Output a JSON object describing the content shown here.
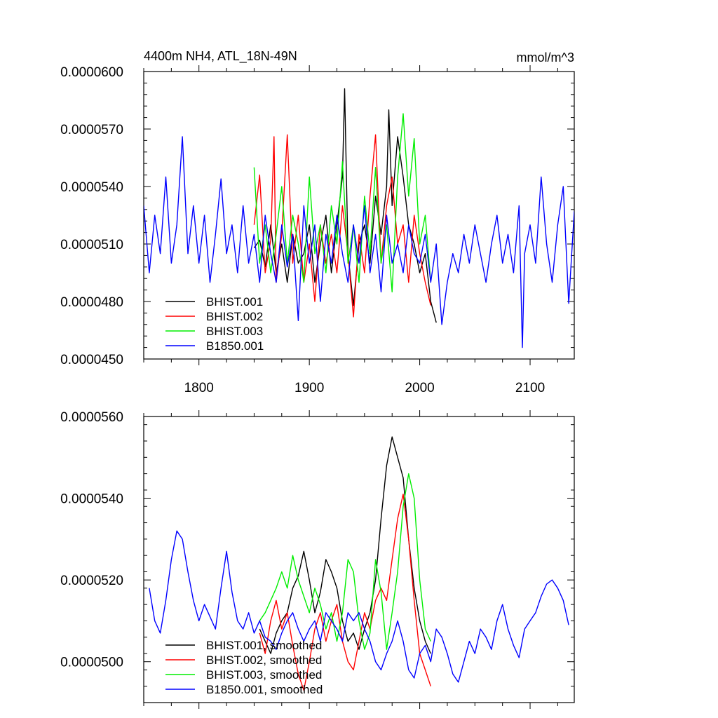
{
  "chart_data": [
    {
      "type": "line",
      "title": "4400m NH4, ATL_18N-49N",
      "units": "mmol/m^3",
      "xlim": [
        1750,
        2140
      ],
      "ylim": [
        4.5e-05,
        6e-05
      ],
      "xticks": [
        1800,
        1900,
        2000,
        2100
      ],
      "xtick_labels": [
        "1800",
        "1900",
        "2000",
        "2100"
      ],
      "yticks": [
        4.5e-05,
        4.8e-05,
        5.1e-05,
        5.4e-05,
        5.7e-05,
        6e-05
      ],
      "ytick_labels": [
        "0.0000450",
        "0.0000480",
        "0.0000510",
        "0.0000540",
        "0.0000570",
        "0.0000600"
      ],
      "legend_position": "bottom-left",
      "series": [
        {
          "name": "BHIST.001",
          "color": "#000000",
          "x": [
            1850,
            1855,
            1860,
            1865,
            1870,
            1875,
            1880,
            1885,
            1890,
            1895,
            1900,
            1905,
            1910,
            1915,
            1920,
            1925,
            1930,
            1932,
            1935,
            1940,
            1945,
            1950,
            1955,
            1960,
            1965,
            1970,
            1972,
            1975,
            1980,
            1985,
            1990,
            1995,
            2000,
            2005,
            2010,
            2015
          ],
          "y": [
            5.08e-05,
            5.12e-05,
            4.98e-05,
            5.2e-05,
            4.95e-05,
            5.1e-05,
            4.9e-05,
            5.15e-05,
            5e-05,
            5.05e-05,
            5.2e-05,
            4.9e-05,
            5.1e-05,
            5.25e-05,
            4.95e-05,
            5.2e-05,
            5.45e-05,
            5.91e-05,
            5.05e-05,
            4.78e-05,
            5.1e-05,
            5.2e-05,
            5e-05,
            5.35e-05,
            5.15e-05,
            5.4e-05,
            5.8e-05,
            5.3e-05,
            5.66e-05,
            5.45e-05,
            5.2e-05,
            5.1e-05,
            4.95e-05,
            5.05e-05,
            4.8e-05,
            4.69e-05
          ]
        },
        {
          "name": "BHIST.002",
          "color": "#ff0000",
          "x": [
            1850,
            1855,
            1860,
            1865,
            1868,
            1870,
            1875,
            1880,
            1885,
            1890,
            1895,
            1900,
            1905,
            1910,
            1915,
            1920,
            1925,
            1930,
            1935,
            1940,
            1945,
            1950,
            1955,
            1960,
            1965,
            1970,
            1975,
            1980,
            1985,
            1990,
            1995,
            2000,
            2005,
            2010
          ],
          "y": [
            5.2e-05,
            5.46e-05,
            4.95e-05,
            5.12e-05,
            5.66e-05,
            4.9e-05,
            5.15e-05,
            5.67e-05,
            5e-05,
            5.25e-05,
            4.9e-05,
            5.1e-05,
            4.8e-05,
            5.2e-05,
            5e-05,
            5.15e-05,
            4.95e-05,
            5.3e-05,
            5.05e-05,
            4.72e-05,
            5.15e-05,
            4.95e-05,
            5.35e-05,
            5.67e-05,
            5e-05,
            5.3e-05,
            5.45e-05,
            5.1e-05,
            5.2e-05,
            4.9e-05,
            5.25e-05,
            5.05e-05,
            4.9e-05,
            4.78e-05
          ]
        },
        {
          "name": "BHIST.003",
          "color": "#00ee00",
          "x": [
            1850,
            1855,
            1860,
            1865,
            1870,
            1875,
            1880,
            1885,
            1890,
            1895,
            1900,
            1905,
            1910,
            1915,
            1920,
            1925,
            1930,
            1935,
            1940,
            1945,
            1950,
            1955,
            1960,
            1965,
            1970,
            1975,
            1980,
            1985,
            1990,
            1995,
            2000,
            2005,
            2010
          ],
          "y": [
            5.5e-05,
            5e-05,
            5.2e-05,
            4.95e-05,
            5.15e-05,
            5.4e-05,
            5e-05,
            5.25e-05,
            5.1e-05,
            4.9e-05,
            5.45e-05,
            5.05e-05,
            5.2e-05,
            4.95e-05,
            5.3e-05,
            5.1e-05,
            5.53e-05,
            5e-05,
            5.2e-05,
            4.9e-05,
            5.35e-05,
            5.05e-05,
            5.5e-05,
            5e-05,
            5.2e-05,
            4.85e-05,
            5.45e-05,
            5.78e-05,
            5.35e-05,
            5.65e-05,
            5.1e-05,
            5.25e-05,
            4.9e-05
          ]
        },
        {
          "name": "B1850.001",
          "color": "#0000ff",
          "x": [
            1750,
            1755,
            1760,
            1765,
            1770,
            1775,
            1780,
            1785,
            1790,
            1795,
            1800,
            1805,
            1810,
            1815,
            1820,
            1825,
            1830,
            1835,
            1840,
            1845,
            1850,
            1855,
            1860,
            1865,
            1870,
            1875,
            1880,
            1885,
            1890,
            1895,
            1900,
            1905,
            1910,
            1915,
            1920,
            1925,
            1930,
            1935,
            1940,
            1945,
            1950,
            1955,
            1960,
            1965,
            1970,
            1975,
            1980,
            1985,
            1990,
            1995,
            2000,
            2005,
            2010,
            2015,
            2020,
            2025,
            2030,
            2035,
            2040,
            2045,
            2050,
            2055,
            2060,
            2065,
            2070,
            2075,
            2080,
            2085,
            2090,
            2093,
            2095,
            2100,
            2105,
            2110,
            2115,
            2120,
            2125,
            2130,
            2135,
            2140
          ],
          "y": [
            5.3e-05,
            4.95e-05,
            5.25e-05,
            5.05e-05,
            5.45e-05,
            5e-05,
            5.2e-05,
            5.66e-05,
            5.05e-05,
            5.3e-05,
            5e-05,
            5.25e-05,
            4.9e-05,
            5.15e-05,
            5.44e-05,
            5.05e-05,
            5.2e-05,
            4.95e-05,
            5.3e-05,
            5e-05,
            5.15e-05,
            4.9e-05,
            5.25e-05,
            5.05e-05,
            4.9e-05,
            5.2e-05,
            4.98e-05,
            5.15e-05,
            4.7e-05,
            5.3e-05,
            5e-05,
            5.2e-05,
            4.8e-05,
            5.15e-05,
            5e-05,
            5.25e-05,
            5.05e-05,
            4.9e-05,
            5.2e-05,
            5e-05,
            5.3e-05,
            4.95e-05,
            5.15e-05,
            4.85e-05,
            5.25e-05,
            5e-05,
            5.1e-05,
            4.95e-05,
            5.2e-05,
            5.05e-05,
            5e-05,
            5.15e-05,
            4.9e-05,
            5.1e-05,
            4.68e-05,
            4.9e-05,
            5.05e-05,
            4.95e-05,
            5.15e-05,
            5e-05,
            5.2e-05,
            5.05e-05,
            4.9e-05,
            5.1e-05,
            5.25e-05,
            5e-05,
            5.15e-05,
            4.95e-05,
            5.3e-05,
            4.56e-05,
            5.05e-05,
            5.2e-05,
            5e-05,
            5.45e-05,
            5.1e-05,
            4.9e-05,
            5.2e-05,
            5.4e-05,
            4.79e-05,
            5.27e-05
          ]
        }
      ]
    },
    {
      "type": "line",
      "xlim": [
        1750,
        2140
      ],
      "ylim": [
        4.9e-05,
        5.6e-05
      ],
      "xticks": [
        1800,
        1900,
        2000,
        2100
      ],
      "yticks": [
        5e-05,
        5.2e-05,
        5.4e-05,
        5.6e-05
      ],
      "ytick_labels": [
        "0.0000500",
        "0.0000520",
        "0.0000540",
        "0.0000560"
      ],
      "legend_position": "bottom-left",
      "series": [
        {
          "name": "BHIST.001, smoothed",
          "color": "#000000",
          "x": [
            1855,
            1860,
            1865,
            1870,
            1875,
            1880,
            1885,
            1890,
            1895,
            1900,
            1905,
            1910,
            1915,
            1920,
            1925,
            1930,
            1935,
            1940,
            1945,
            1950,
            1955,
            1960,
            1965,
            1970,
            1975,
            1980,
            1985,
            1990,
            1995,
            2000,
            2005,
            2010
          ],
          "y": [
            5.08e-05,
            5.05e-05,
            5.02e-05,
            5.07e-05,
            5.1e-05,
            5.12e-05,
            5.18e-05,
            5.21e-05,
            5.27e-05,
            5.2e-05,
            5.12e-05,
            5.17e-05,
            5.25e-05,
            5.22e-05,
            5.18e-05,
            5.1e-05,
            5.05e-05,
            5.07e-05,
            5.03e-05,
            5.08e-05,
            5.12e-05,
            5.2e-05,
            5.35e-05,
            5.48e-05,
            5.55e-05,
            5.5e-05,
            5.45e-05,
            5.3e-05,
            5.18e-05,
            5.1e-05,
            5.05e-05,
            5.02e-05
          ]
        },
        {
          "name": "BHIST.002, smoothed",
          "color": "#ff0000",
          "x": [
            1855,
            1860,
            1865,
            1870,
            1875,
            1880,
            1885,
            1890,
            1895,
            1900,
            1905,
            1910,
            1915,
            1920,
            1925,
            1930,
            1935,
            1940,
            1945,
            1950,
            1955,
            1960,
            1965,
            1970,
            1975,
            1980,
            1985,
            1990,
            1995,
            2000,
            2005,
            2010
          ],
          "y": [
            5.07e-05,
            5.02e-05,
            5.1e-05,
            5.15e-05,
            5.08e-05,
            5.12e-05,
            5.04e-05,
            4.97e-05,
            4.93e-05,
            5e-05,
            5.08e-05,
            5.12e-05,
            5.05e-05,
            5.1e-05,
            5.14e-05,
            5.05e-05,
            5e-05,
            4.98e-05,
            5.05e-05,
            5.12e-05,
            5.08e-05,
            5.15e-05,
            5.18e-05,
            5.15e-05,
            5.25e-05,
            5.35e-05,
            5.41e-05,
            5.3e-05,
            5.15e-05,
            5.02e-05,
            4.98e-05,
            4.94e-05
          ]
        },
        {
          "name": "BHIST.003, smoothed",
          "color": "#00ee00",
          "x": [
            1855,
            1860,
            1865,
            1870,
            1875,
            1880,
            1885,
            1890,
            1895,
            1900,
            1905,
            1910,
            1915,
            1920,
            1925,
            1930,
            1935,
            1940,
            1945,
            1950,
            1955,
            1960,
            1965,
            1970,
            1975,
            1980,
            1985,
            1990,
            1995,
            2000,
            2005,
            2010
          ],
          "y": [
            5.1e-05,
            5.12e-05,
            5.15e-05,
            5.18e-05,
            5.22e-05,
            5.18e-05,
            5.26e-05,
            5.2e-05,
            5.16e-05,
            5.12e-05,
            5.18e-05,
            5.14e-05,
            5.08e-05,
            5.12e-05,
            5.05e-05,
            5.12e-05,
            5.25e-05,
            5.22e-05,
            5.1e-05,
            5.03e-05,
            5.07e-05,
            5.25e-05,
            5.17e-05,
            5.03e-05,
            5.12e-05,
            5.22e-05,
            5.38e-05,
            5.46e-05,
            5.4e-05,
            5.2e-05,
            5.08e-05,
            5.05e-05
          ]
        },
        {
          "name": "B1850.001, smoothed",
          "color": "#0000ff",
          "x": [
            1755,
            1760,
            1765,
            1770,
            1775,
            1780,
            1785,
            1790,
            1795,
            1800,
            1805,
            1810,
            1815,
            1820,
            1825,
            1830,
            1835,
            1840,
            1845,
            1850,
            1855,
            1860,
            1865,
            1870,
            1875,
            1880,
            1885,
            1890,
            1895,
            1900,
            1905,
            1910,
            1915,
            1920,
            1925,
            1930,
            1935,
            1940,
            1945,
            1950,
            1955,
            1960,
            1965,
            1970,
            1975,
            1980,
            1985,
            1990,
            1995,
            2000,
            2005,
            2010,
            2015,
            2020,
            2025,
            2030,
            2035,
            2040,
            2045,
            2050,
            2055,
            2060,
            2065,
            2070,
            2075,
            2080,
            2085,
            2090,
            2095,
            2100,
            2105,
            2110,
            2115,
            2120,
            2125,
            2130,
            2135
          ],
          "y": [
            5.18e-05,
            5.1e-05,
            5.07e-05,
            5.15e-05,
            5.25e-05,
            5.32e-05,
            5.3e-05,
            5.22e-05,
            5.15e-05,
            5.1e-05,
            5.14e-05,
            5.11e-05,
            5.08e-05,
            5.18e-05,
            5.27e-05,
            5.17e-05,
            5.1e-05,
            5.08e-05,
            5.12e-05,
            5.07e-05,
            5.1e-05,
            5.06e-05,
            5.05e-05,
            5.03e-05,
            5.07e-05,
            5.1e-05,
            5.12e-05,
            5.08e-05,
            5.05e-05,
            5.08e-05,
            5.1e-05,
            5.05e-05,
            5.12e-05,
            5.1e-05,
            5.08e-05,
            5.05e-05,
            5.12e-05,
            5.1e-05,
            5.12e-05,
            5.08e-05,
            5.05e-05,
            5e-05,
            4.98e-05,
            5.02e-05,
            5.05e-05,
            5.1e-05,
            5.05e-05,
            4.98e-05,
            4.96e-05,
            5.02e-05,
            5.04e-05,
            5e-05,
            5.08e-05,
            5.06e-05,
            5.02e-05,
            4.97e-05,
            4.95e-05,
            5e-05,
            5.05e-05,
            5.02e-05,
            5.08e-05,
            5.06e-05,
            5.03e-05,
            5.1e-05,
            5.14e-05,
            5.08e-05,
            5.04e-05,
            5.01e-05,
            5.08e-05,
            5.1e-05,
            5.12e-05,
            5.16e-05,
            5.19e-05,
            5.2e-05,
            5.18e-05,
            5.15e-05,
            5.09e-05
          ]
        }
      ]
    }
  ]
}
